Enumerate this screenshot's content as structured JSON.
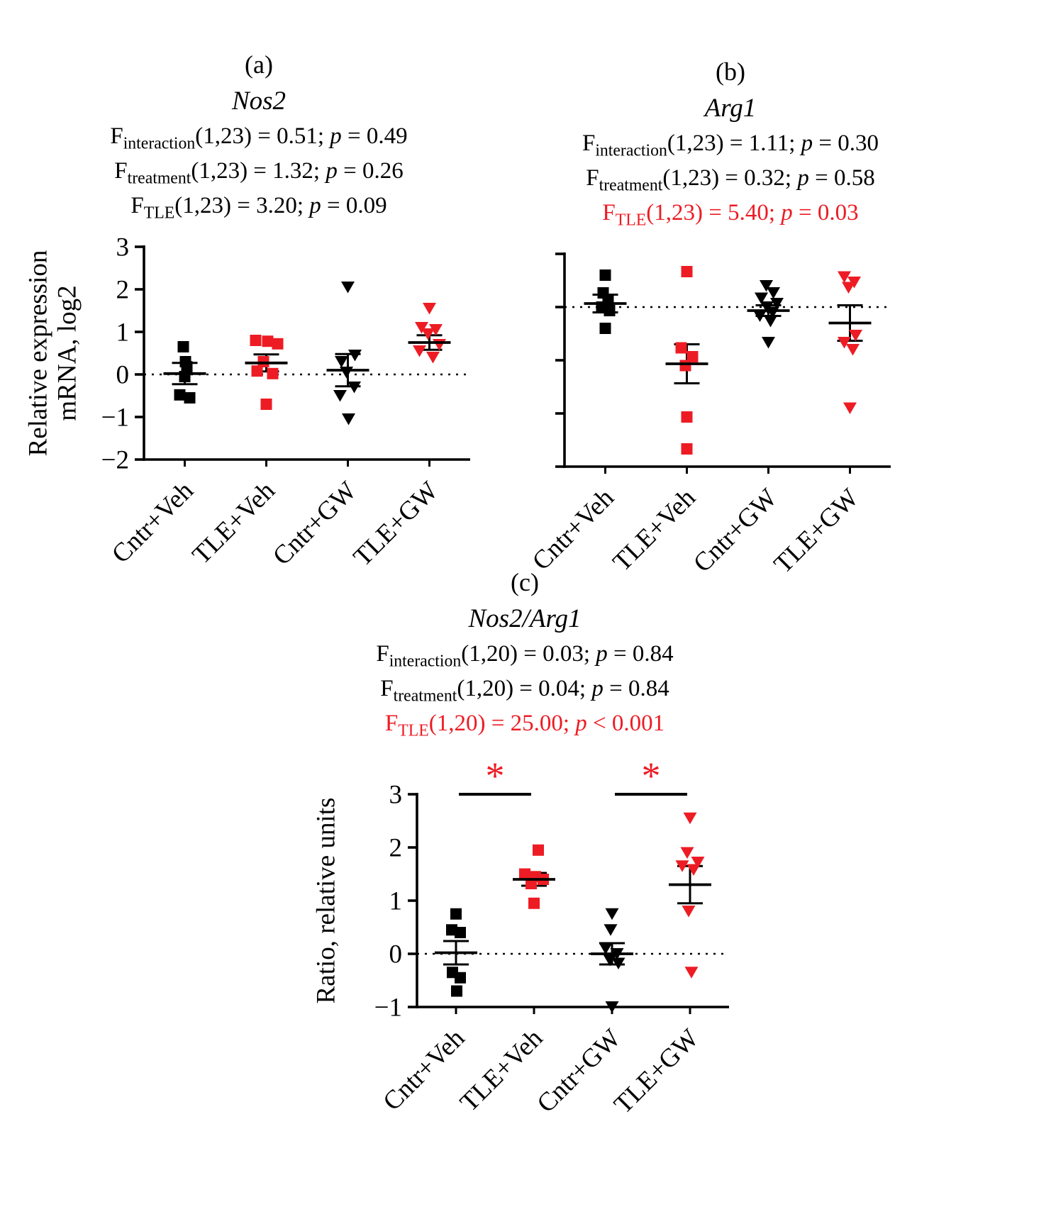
{
  "symbols": {
    "F": "F",
    "p": "p"
  },
  "colors": {
    "red": "#ed1c24",
    "black": "#000000"
  },
  "panels": [
    {
      "letter": "(a)",
      "title": "Nos2",
      "ylabel_lines": [
        "Relative expression",
        "mRNA, log2"
      ],
      "stats": [
        {
          "sub": "interaction",
          "rest": "(1,23) = 0.51; ",
          "pval": " = 0.49",
          "color": "#000000"
        },
        {
          "sub": "treatment",
          "rest": "(1,23) = 1.32; ",
          "pval": " = 0.26",
          "color": "#000000"
        },
        {
          "sub": "TLE",
          "rest": "(1,23) = 3.20; ",
          "pval": " = 0.09",
          "color": "#000000"
        }
      ]
    },
    {
      "letter": "(b)",
      "title": "Arg1",
      "ylabel_lines": [],
      "stats": [
        {
          "sub": "interaction",
          "rest": "(1,23) = 1.11; ",
          "pval": " = 0.30",
          "color": "#000000"
        },
        {
          "sub": "treatment",
          "rest": "(1,23) = 0.32; ",
          "pval": " = 0.58",
          "color": "#000000"
        },
        {
          "sub": "TLE",
          "rest": "(1,23) = 5.40; ",
          "pval": " = 0.03",
          "color": "#ed1c24"
        }
      ]
    },
    {
      "letter": "(c)",
      "title": "Nos2/Arg1",
      "ylabel_lines": [
        "Ratio, relative units"
      ],
      "stats": [
        {
          "sub": "interaction",
          "rest": "(1,20) = 0.03; ",
          "pval": " = 0.84",
          "color": "#000000"
        },
        {
          "sub": "treatment",
          "rest": "(1,20) = 0.04; ",
          "pval": " = 0.84",
          "color": "#000000"
        },
        {
          "sub": "TLE",
          "rest": "(1,20) = 25.00; ",
          "pval": " < 0.001",
          "color": "#ed1c24"
        }
      ]
    }
  ],
  "chart_data": [
    {
      "type": "scatter",
      "panel": "a",
      "title": "Nos2",
      "ylabel": "Relative expression mRNA, log2",
      "categories": [
        "Cntr+Veh",
        "TLE+Veh",
        "Cntr+GW",
        "TLE+GW"
      ],
      "ylim": [
        -2,
        3
      ],
      "yticks": [
        3,
        2,
        1,
        0,
        -1,
        -2
      ],
      "ytick_labels": [
        "3",
        "2",
        "1",
        "0",
        "−1",
        "−2"
      ],
      "dotted_y": 0,
      "groups": [
        {
          "name": "Cntr+Veh",
          "marker": "square",
          "color": "#000000",
          "values": [
            0.65,
            0.3,
            0.18,
            -0.05,
            -0.48,
            -0.55
          ],
          "jitter": [
            -2,
            1,
            3,
            0,
            -7,
            7
          ],
          "mean": 0.02,
          "sem": 0.25
        },
        {
          "name": "TLE+Veh",
          "marker": "square",
          "color": "#ed1c24",
          "values": [
            0.8,
            0.78,
            0.72,
            0.3,
            0.08,
            0.02,
            -0.7
          ],
          "jitter": [
            -15,
            2,
            16,
            -4,
            -13,
            9,
            0
          ],
          "mean": 0.27,
          "sem": 0.2
        },
        {
          "name": "Cntr+GW",
          "marker": "triangle-down",
          "color": "#000000",
          "values": [
            2.05,
            0.45,
            0.3,
            0.05,
            -0.3,
            -0.5,
            -1.05
          ],
          "jitter": [
            0,
            10,
            -9,
            -2,
            9,
            -11,
            1
          ],
          "mean": 0.1,
          "sem": 0.38
        },
        {
          "name": "TLE+GW",
          "marker": "triangle-down",
          "color": "#ed1c24",
          "values": [
            1.55,
            1.1,
            1.05,
            0.95,
            0.7,
            0.55,
            0.4
          ],
          "jitter": [
            0,
            -11,
            9,
            -2,
            14,
            -14,
            5
          ],
          "mean": 0.75,
          "sem": 0.17
        }
      ],
      "significance": []
    },
    {
      "type": "scatter",
      "panel": "b",
      "title": "Arg1",
      "ylabel": "",
      "categories": [
        "Cntr+Veh",
        "TLE+Veh",
        "Cntr+GW",
        "TLE+GW"
      ],
      "ylim": [
        -3,
        3
      ],
      "yticks": [
        3,
        1.5,
        0,
        -1.5,
        -3
      ],
      "ytick_labels": [
        "",
        "",
        "",
        "",
        ""
      ],
      "dotted_y": 1.5,
      "groups": [
        {
          "name": "Cntr+Veh",
          "marker": "square",
          "color": "#000000",
          "values": [
            2.4,
            1.9,
            1.7,
            1.5,
            1.4,
            0.9
          ],
          "jitter": [
            0,
            -3,
            4,
            -5,
            6,
            0
          ],
          "mean": 1.6,
          "sem": 0.25
        },
        {
          "name": "TLE+Veh",
          "marker": "square",
          "color": "#ed1c24",
          "values": [
            2.5,
            0.35,
            0.1,
            -0.15,
            -1.6,
            -2.5
          ],
          "jitter": [
            0,
            -8,
            8,
            -2,
            0,
            0
          ],
          "mean": -0.1,
          "sem": 0.55
        },
        {
          "name": "Cntr+GW",
          "marker": "triangle-down",
          "color": "#000000",
          "values": [
            2.1,
            1.9,
            1.75,
            1.6,
            1.5,
            1.35,
            1.25,
            1.1,
            0.5
          ],
          "jitter": [
            -3,
            7,
            -10,
            12,
            -2,
            6,
            -12,
            3,
            0
          ],
          "mean": 1.4,
          "sem": 0.15
        },
        {
          "name": "TLE+GW",
          "marker": "triangle-down",
          "color": "#ed1c24",
          "values": [
            2.35,
            2.2,
            2.05,
            0.7,
            0.5,
            0.3,
            -1.35
          ],
          "jitter": [
            -8,
            6,
            -2,
            8,
            -8,
            4,
            0
          ],
          "mean": 1.05,
          "sem": 0.5
        }
      ],
      "significance": []
    },
    {
      "type": "scatter",
      "panel": "c",
      "title": "Nos2/Arg1",
      "ylabel": "Ratio, relative units",
      "categories": [
        "Cntr+Veh",
        "TLE+Veh",
        "Cntr+GW",
        "TLE+GW"
      ],
      "ylim": [
        -1,
        3
      ],
      "yticks": [
        3,
        2,
        1,
        0,
        -1
      ],
      "ytick_labels": [
        "3",
        "2",
        "1",
        "0",
        "−1"
      ],
      "dotted_y": 0,
      "groups": [
        {
          "name": "Cntr+Veh",
          "marker": "square",
          "color": "#000000",
          "values": [
            0.75,
            0.45,
            0.4,
            -0.35,
            -0.45,
            -0.7
          ],
          "jitter": [
            0,
            -6,
            6,
            -5,
            6,
            1
          ],
          "mean": 0.02,
          "sem": 0.22
        },
        {
          "name": "TLE+Veh",
          "marker": "square",
          "color": "#ed1c24",
          "values": [
            1.95,
            1.5,
            1.45,
            1.4,
            1.32,
            0.95
          ],
          "jitter": [
            6,
            -13,
            2,
            13,
            -4,
            0
          ],
          "mean": 1.4,
          "sem": 0.12
        },
        {
          "name": "Cntr+GW",
          "marker": "triangle-down",
          "color": "#000000",
          "values": [
            0.75,
            0.45,
            0.1,
            0.0,
            -0.12,
            -0.18,
            -1.0
          ],
          "jitter": [
            0,
            -2,
            -9,
            7,
            -3,
            9,
            0
          ],
          "mean": 0.0,
          "sem": 0.2
        },
        {
          "name": "TLE+GW",
          "marker": "triangle-down",
          "color": "#ed1c24",
          "values": [
            2.55,
            1.9,
            1.72,
            1.65,
            1.58,
            0.8,
            -0.35
          ],
          "jitter": [
            0,
            -4,
            11,
            -11,
            5,
            -2,
            2
          ],
          "mean": 1.3,
          "sem": 0.35
        }
      ],
      "significance": [
        {
          "from": 0,
          "to": 1,
          "y": 3.0,
          "label": "*",
          "label_color": "#ed1c24"
        },
        {
          "from": 2,
          "to": 3,
          "y": 3.0,
          "label": "*",
          "label_color": "#ed1c24"
        }
      ]
    }
  ]
}
